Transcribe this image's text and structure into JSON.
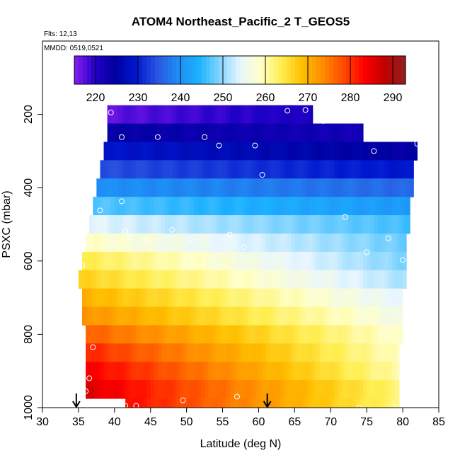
{
  "chart_data": {
    "type": "heatmap",
    "title": "ATOM4 Northeast_Pacific_2 T_GEOS5",
    "flights_text": "Flts: 12,13",
    "date_text": "MMDD: 0519,0521",
    "xlabel": "Latitude (deg N)",
    "ylabel": "PSXC (mbar)",
    "xlim": [
      30,
      85
    ],
    "ylim": [
      1000,
      0
    ],
    "y_inverted": true,
    "x_ticks": [
      "30",
      "35",
      "40",
      "45",
      "50",
      "55",
      "60",
      "65",
      "70",
      "75",
      "80",
      "85"
    ],
    "y_ticks": [
      "200",
      "400",
      "600",
      "800",
      "1000"
    ],
    "x_tick_values": [
      30,
      35,
      40,
      45,
      50,
      55,
      60,
      65,
      70,
      75,
      80,
      85
    ],
    "y_tick_values": [
      200,
      400,
      600,
      800,
      1000
    ],
    "colorbar": {
      "vmin": 215,
      "vmax": 293,
      "ticks": [
        "220",
        "230",
        "240",
        "250",
        "260",
        "270",
        "280",
        "290"
      ],
      "tick_values": [
        220,
        230,
        240,
        250,
        260,
        270,
        280,
        290
      ],
      "colors": [
        "#8a1df0",
        "#2200c8",
        "#0000a0",
        "#0018d0",
        "#2a55e0",
        "#1e8cf5",
        "#1cb0ff",
        "#80d4ff",
        "#e8f6ff",
        "#ffffc8",
        "#ffee50",
        "#ffc000",
        "#ff8c00",
        "#ff4a00",
        "#ff0000",
        "#c00000",
        "#902020"
      ]
    },
    "level_rows": [
      {
        "p": 200,
        "lat_min": 39.0,
        "lat_max": 67.5,
        "t_left": 217,
        "t_right": 221
      },
      {
        "p": 250,
        "lat_min": 39.0,
        "lat_max": 74.5,
        "t_left": 224,
        "t_right": 222
      },
      {
        "p": 300,
        "lat_min": 38.5,
        "lat_max": 82.0,
        "t_left": 229,
        "t_right": 224
      },
      {
        "p": 350,
        "lat_min": 38.0,
        "lat_max": 81.5,
        "t_left": 234,
        "t_right": 229
      },
      {
        "p": 400,
        "lat_min": 37.5,
        "lat_max": 81.5,
        "t_left": 240,
        "t_right": 236
      },
      {
        "p": 450,
        "lat_min": 37.0,
        "lat_max": 81.0,
        "t_left": 247,
        "t_right": 241
      },
      {
        "p": 500,
        "lat_min": 36.5,
        "lat_max": 81.0,
        "t_left": 254,
        "t_right": 246
      },
      {
        "p": 550,
        "lat_min": 36.0,
        "lat_max": 80.5,
        "t_left": 259,
        "t_right": 248
      },
      {
        "p": 600,
        "lat_min": 35.5,
        "lat_max": 80.5,
        "t_left": 264,
        "t_right": 249
      },
      {
        "p": 650,
        "lat_min": 35.0,
        "lat_max": 80.5,
        "t_left": 267,
        "t_right": 251
      },
      {
        "p": 700,
        "lat_min": 35.5,
        "lat_max": 80.0,
        "t_left": 270,
        "t_right": 254
      },
      {
        "p": 750,
        "lat_min": 35.5,
        "lat_max": 80.0,
        "t_left": 273,
        "t_right": 256
      },
      {
        "p": 800,
        "lat_min": 36.0,
        "lat_max": 80.0,
        "t_left": 277,
        "t_right": 258
      },
      {
        "p": 850,
        "lat_min": 36.0,
        "lat_max": 79.5,
        "t_left": 281,
        "t_right": 259
      },
      {
        "p": 900,
        "lat_min": 36.0,
        "lat_max": 79.5,
        "t_left": 284,
        "t_right": 260
      },
      {
        "p": 950,
        "lat_min": 36.0,
        "lat_max": 79.5,
        "t_left": 286,
        "t_right": 262
      },
      {
        "p": 1000,
        "lat_min": 41.5,
        "lat_max": 79.5,
        "t_left": 283,
        "t_right": 262
      }
    ],
    "observation_points": [
      {
        "lat": 39.5,
        "p": 195
      },
      {
        "lat": 64.0,
        "p": 190
      },
      {
        "lat": 66.5,
        "p": 188
      },
      {
        "lat": 69.0,
        "p": 218
      },
      {
        "lat": 41.0,
        "p": 262
      },
      {
        "lat": 46.0,
        "p": 262
      },
      {
        "lat": 52.5,
        "p": 262
      },
      {
        "lat": 54.5,
        "p": 285
      },
      {
        "lat": 59.5,
        "p": 285
      },
      {
        "lat": 76.0,
        "p": 300
      },
      {
        "lat": 82.0,
        "p": 280
      },
      {
        "lat": 60.5,
        "p": 365
      },
      {
        "lat": 41.0,
        "p": 437
      },
      {
        "lat": 38.0,
        "p": 462
      },
      {
        "lat": 72.0,
        "p": 480
      },
      {
        "lat": 41.5,
        "p": 520
      },
      {
        "lat": 42.0,
        "p": 535
      },
      {
        "lat": 48.0,
        "p": 515
      },
      {
        "lat": 50.5,
        "p": 542
      },
      {
        "lat": 44.5,
        "p": 548
      },
      {
        "lat": 56.0,
        "p": 528
      },
      {
        "lat": 58.0,
        "p": 563
      },
      {
        "lat": 78.0,
        "p": 538
      },
      {
        "lat": 75.0,
        "p": 576
      },
      {
        "lat": 80.0,
        "p": 597
      },
      {
        "lat": 35.5,
        "p": 612
      },
      {
        "lat": 37.0,
        "p": 835
      },
      {
        "lat": 36.5,
        "p": 920
      },
      {
        "lat": 36.0,
        "p": 955
      },
      {
        "lat": 41.5,
        "p": 995
      },
      {
        "lat": 43.0,
        "p": 995
      },
      {
        "lat": 49.5,
        "p": 980
      },
      {
        "lat": 57.0,
        "p": 970
      },
      {
        "lat": 74.0,
        "p": 1000
      },
      {
        "lat": 79.0,
        "p": 1000
      }
    ],
    "arrows": [
      {
        "lat": 34.7
      },
      {
        "lat": 61.2
      }
    ]
  }
}
